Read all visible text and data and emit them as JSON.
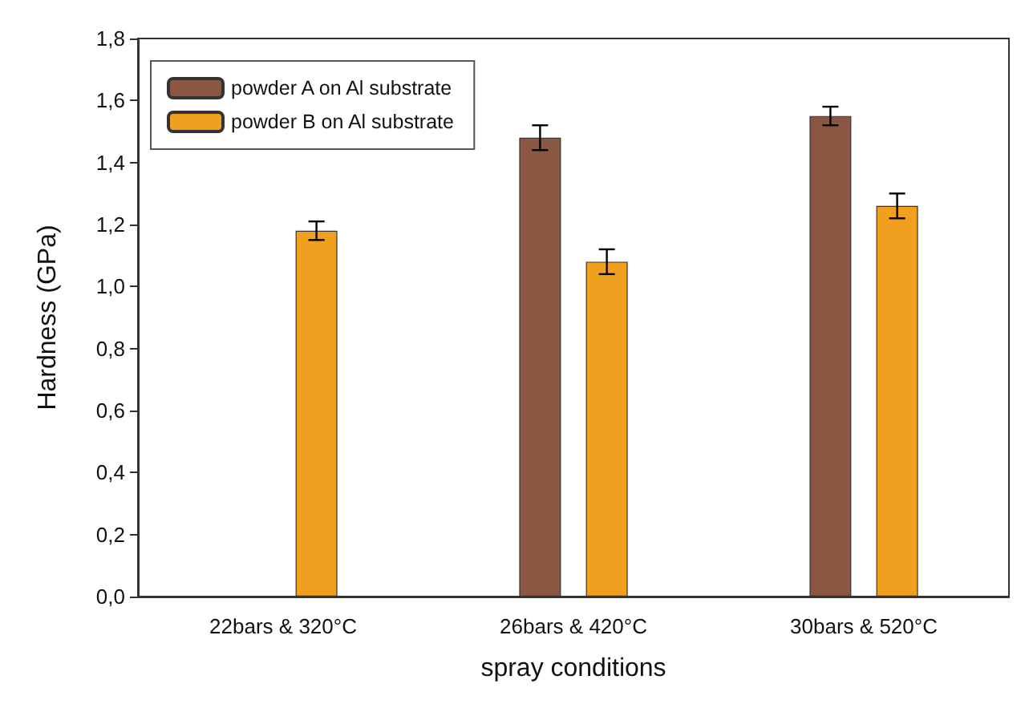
{
  "chart_data": {
    "type": "bar",
    "xlabel": "spray conditions",
    "ylabel": "Hardness (GPa)",
    "categories": [
      "22bars & 320°C",
      "26bars & 420°C",
      "30bars & 520°C"
    ],
    "series": [
      {
        "name": "powder A on Al substrate",
        "color": "#8b5742",
        "values": [
          null,
          1.48,
          1.55
        ],
        "errors": [
          null,
          0.04,
          0.03
        ]
      },
      {
        "name": "powder B on Al substrate",
        "color": "#f0a01e",
        "values": [
          1.18,
          1.08,
          1.26
        ],
        "errors": [
          0.03,
          0.04,
          0.04
        ]
      }
    ],
    "ylim": [
      0,
      1.8
    ],
    "yticks": [
      {
        "value": 0,
        "label": "0,0"
      },
      {
        "value": 0.2,
        "label": "0,2"
      },
      {
        "value": 0.4,
        "label": "0,4"
      },
      {
        "value": 0.6,
        "label": "0,6"
      },
      {
        "value": 0.8,
        "label": "0,8"
      },
      {
        "value": 1.0,
        "label": "1,0"
      },
      {
        "value": 1.2,
        "label": "1,2"
      },
      {
        "value": 1.4,
        "label": "1,4"
      },
      {
        "value": 1.6,
        "label": "1,6"
      },
      {
        "value": 1.8,
        "label": "1,8"
      }
    ],
    "grid": false,
    "legend": "top left"
  }
}
